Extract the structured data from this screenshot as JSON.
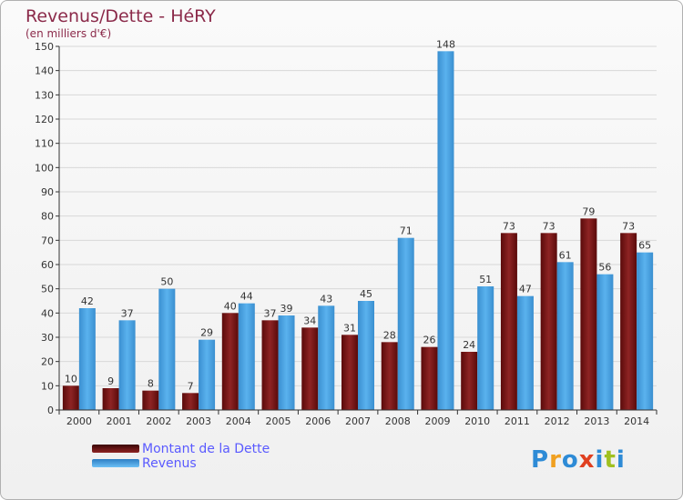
{
  "title": "Revenus/Dette - HéRY",
  "subtitle": "(en milliers d'€)",
  "colors": {
    "dette": "#7a1515",
    "revenus": "#4aa3e3",
    "title": "#8b2a4a"
  },
  "legend": {
    "dette": "Montant de la Dette",
    "revenus": "Revenus"
  },
  "logo": {
    "letters": [
      "P",
      "r",
      "o",
      "x",
      "i",
      "t",
      "i"
    ],
    "colors": [
      "#2e8bd6",
      "#f0a020",
      "#2e8bd6",
      "#e04020",
      "#2e8bd6",
      "#a0c020",
      "#2e8bd6"
    ]
  },
  "chart_data": {
    "type": "bar",
    "title": "Revenus/Dette - HéRY",
    "ylabel": "(en milliers d'€)",
    "categories": [
      "2000",
      "2001",
      "2002",
      "2003",
      "2004",
      "2005",
      "2006",
      "2007",
      "2008",
      "2009",
      "2010",
      "2011",
      "2012",
      "2013",
      "2014"
    ],
    "series": [
      {
        "name": "Montant de la Dette",
        "values": [
          10,
          9,
          8,
          7,
          40,
          37,
          34,
          31,
          28,
          26,
          24,
          73,
          73,
          79,
          73
        ]
      },
      {
        "name": "Revenus",
        "values": [
          42,
          37,
          50,
          29,
          44,
          39,
          43,
          45,
          71,
          148,
          51,
          47,
          61,
          56,
          65
        ]
      }
    ],
    "ylim": [
      0,
      150
    ],
    "yticks": [
      0,
      10,
      20,
      30,
      40,
      50,
      60,
      70,
      80,
      90,
      100,
      110,
      120,
      130,
      140,
      150
    ],
    "grid": true
  }
}
